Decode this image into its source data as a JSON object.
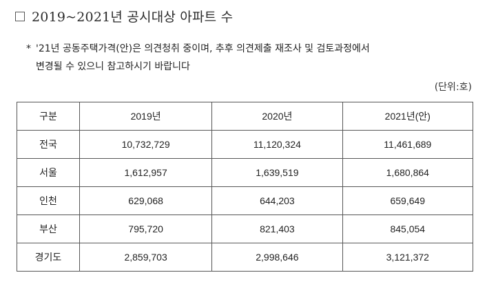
{
  "title": {
    "checkbox": "□",
    "text": "2019~2021년 공시대상 아파트 수"
  },
  "note": {
    "marker": "*",
    "line1": "'21년 공동주택가격(안)은 의견청취 중이며, 추후 의견제출 재조사 및 검토과정에서",
    "line2": "변경될 수 있으니 참고하시기 바랍니다"
  },
  "unit": "(단위:호)",
  "table": {
    "headers": [
      "구분",
      "2019년",
      "2020년",
      "2021년(안)"
    ],
    "rows": [
      {
        "region": "전국",
        "y2019": "10,732,729",
        "y2020": "11,120,324",
        "y2021": "11,461,689"
      },
      {
        "region": "서울",
        "y2019": "1,612,957",
        "y2020": "1,639,519",
        "y2021": "1,680,864"
      },
      {
        "region": "인천",
        "y2019": "629,068",
        "y2020": "644,203",
        "y2021": "659,649"
      },
      {
        "region": "부산",
        "y2019": "795,720",
        "y2020": "821,403",
        "y2021": "845,054"
      },
      {
        "region": "경기도",
        "y2019": "2,859,703",
        "y2020": "2,998,646",
        "y2021": "3,121,372"
      }
    ]
  }
}
